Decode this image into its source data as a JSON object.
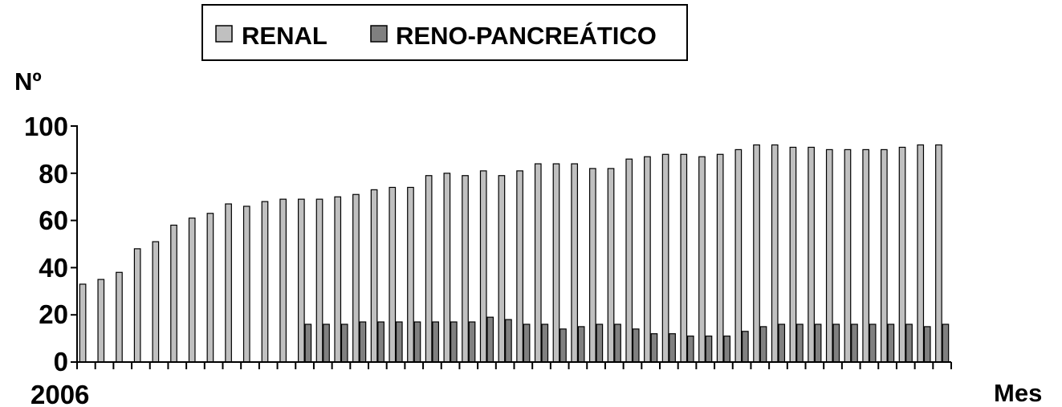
{
  "chart_data": {
    "type": "bar",
    "ylabel": "Nº",
    "xlabel": "Mes",
    "x_start_label": "2006",
    "ylim": [
      0,
      100
    ],
    "yticks": [
      "0",
      "20",
      "40",
      "60",
      "80",
      "100"
    ],
    "legend_position": "top",
    "grid": false,
    "series": [
      {
        "name": "RENAL",
        "color": "#c0c0c0",
        "values": [
          33,
          35,
          38,
          48,
          51,
          58,
          61,
          63,
          67,
          66,
          68,
          69,
          69,
          69,
          70,
          71,
          73,
          74,
          74,
          79,
          80,
          79,
          81,
          79,
          81,
          84,
          84,
          84,
          82,
          82,
          86,
          87,
          88,
          88,
          87,
          88,
          90,
          92,
          92,
          91,
          91,
          90,
          90,
          90,
          90,
          91,
          92,
          92
        ]
      },
      {
        "name": "RENO-PANCREÁTICO",
        "color": "#808080",
        "values": [
          0,
          0,
          0,
          0,
          0,
          0,
          0,
          0,
          0,
          0,
          0,
          0,
          16,
          16,
          16,
          17,
          17,
          17,
          17,
          17,
          17,
          17,
          19,
          18,
          16,
          16,
          14,
          15,
          16,
          16,
          14,
          12,
          12,
          11,
          11,
          11,
          13,
          15,
          16,
          16,
          16,
          16,
          16,
          16,
          16,
          16,
          15,
          16
        ]
      }
    ]
  }
}
